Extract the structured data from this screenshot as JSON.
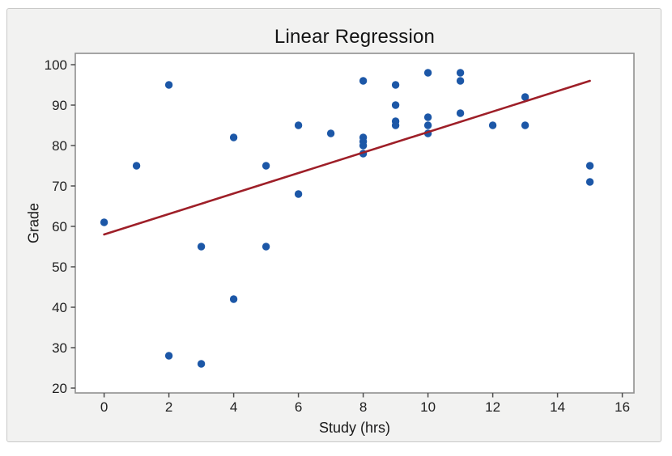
{
  "chart_data": {
    "type": "scatter",
    "title": "Linear Regression",
    "xlabel": "Study (hrs)",
    "ylabel": "Grade",
    "xlim": [
      -0.89,
      16.36
    ],
    "ylim": [
      18.8,
      102.8
    ],
    "xticks": [
      0,
      2,
      4,
      6,
      8,
      10,
      12,
      14,
      16
    ],
    "yticks": [
      20,
      30,
      40,
      50,
      60,
      70,
      80,
      90,
      100
    ],
    "grid": false,
    "legend": false,
    "points": [
      [
        0,
        61
      ],
      [
        1,
        75
      ],
      [
        2,
        95
      ],
      [
        2,
        28
      ],
      [
        3,
        55
      ],
      [
        3,
        26
      ],
      [
        4,
        82
      ],
      [
        4,
        42
      ],
      [
        5,
        75
      ],
      [
        5,
        55
      ],
      [
        6,
        85
      ],
      [
        6,
        68
      ],
      [
        7,
        83
      ],
      [
        8,
        96
      ],
      [
        8,
        82
      ],
      [
        8,
        81
      ],
      [
        8,
        80
      ],
      [
        8,
        78
      ],
      [
        9,
        95
      ],
      [
        9,
        90
      ],
      [
        9,
        86
      ],
      [
        9,
        85
      ],
      [
        10,
        98
      ],
      [
        10,
        87
      ],
      [
        10,
        85
      ],
      [
        10,
        83
      ],
      [
        11,
        98
      ],
      [
        11,
        96
      ],
      [
        11,
        88
      ],
      [
        12,
        85
      ],
      [
        13,
        92
      ],
      [
        13,
        85
      ],
      [
        15,
        75
      ],
      [
        15,
        71
      ]
    ],
    "regression_line": {
      "x": [
        0,
        15
      ],
      "y": [
        58,
        96
      ]
    },
    "colors": {
      "point": "#1c57a7",
      "line": "#9e1f28",
      "figure_bg": "#f2f2f1",
      "figure_border": "#c9c9c8",
      "axes_bg": "#ffffff",
      "axes_border": "#8f8f8f",
      "tick": "#4d4d4d",
      "text": "#1f1f1f"
    }
  }
}
